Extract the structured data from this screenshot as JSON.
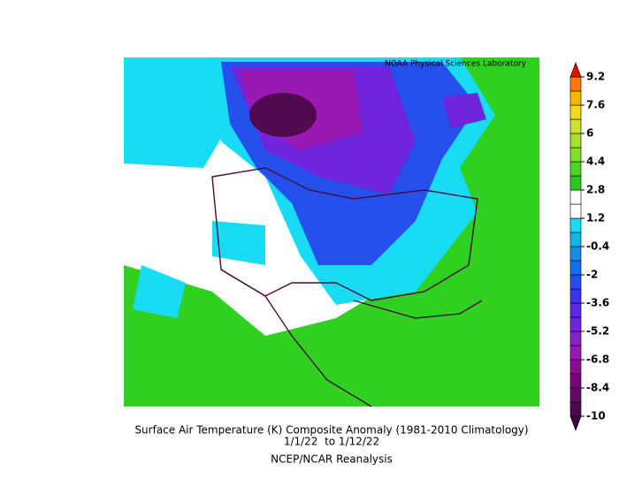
{
  "map": {
    "credit": "NOAA Physical Sciences Laboratory",
    "title": "Surface Air Temperature (K) Composite Anomaly (1981-2010 Climatology)",
    "dates": "1/1/22  to 1/12/22",
    "source": "NCEP/NCAR Reanalysis",
    "colorbar": {
      "ticks": [
        9.2,
        7.6,
        6,
        4.4,
        2.8,
        1.2,
        -0.4,
        -2,
        -3.6,
        -5.2,
        -6.8,
        -8.4,
        -10
      ],
      "colors": [
        "#3a0a3a",
        "#4f0a50",
        "#640a66",
        "#7a007c",
        "#8e0a98",
        "#9a18b4",
        "#8a20cc",
        "#7024dc",
        "#5a2ae6",
        "#3a34ee",
        "#2450ee",
        "#1470ec",
        "#1090e6",
        "#10b4ec",
        "#18dcf4",
        "#ffffff",
        "#ffffff",
        "#28c81c",
        "#50d420",
        "#80e028",
        "#a8e030",
        "#d0e030",
        "#f4d820",
        "#ffb400",
        "#ff7800",
        "#e01000"
      ]
    }
  }
}
